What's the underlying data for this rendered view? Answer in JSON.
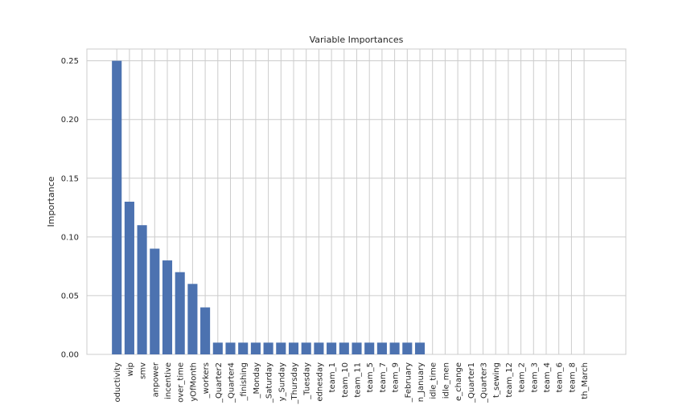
{
  "chart_data": {
    "type": "bar",
    "title": "Variable Importances",
    "xlabel": "",
    "ylabel": "Importance",
    "ylim": [
      0,
      0.26
    ],
    "yticks": [
      0.0,
      0.05,
      0.1,
      0.15,
      0.2,
      0.25
    ],
    "ytick_labels": [
      "0.00",
      "0.05",
      "0.10",
      "0.15",
      "0.20",
      "0.25"
    ],
    "grid": true,
    "bar_color": "#4c72b0",
    "categories": [
      "oductivity",
      "wip",
      "smv",
      "anpower",
      "incentive",
      "over_time",
      "yOfMonth",
      "_workers",
      "_Quarter2",
      "_Quarter4",
      "_finishing",
      "_Monday",
      "_Saturday",
      "y_Sunday",
      "_Thursday",
      "_Tuesday",
      "ednesday",
      "team_1",
      "team_10",
      "team_11",
      "team_5",
      "team_7",
      "team_9",
      "_February",
      "n_January",
      "idle_time",
      "idle_men",
      "e_change",
      "_Quarter1",
      "_Quarter3",
      "t_sewing",
      "team_12",
      "team_2",
      "team_3",
      "team_4",
      "team_6",
      "team_8",
      "th_March"
    ],
    "values": [
      0.25,
      0.13,
      0.11,
      0.09,
      0.08,
      0.07,
      0.06,
      0.04,
      0.01,
      0.01,
      0.01,
      0.01,
      0.01,
      0.01,
      0.01,
      0.01,
      0.01,
      0.01,
      0.01,
      0.01,
      0.01,
      0.01,
      0.01,
      0.01,
      0.01,
      0.0,
      0.0,
      0.0,
      0.0,
      0.0,
      0.0,
      0.0,
      0.0,
      0.0,
      0.0,
      0.0,
      0.0,
      0.0
    ]
  }
}
